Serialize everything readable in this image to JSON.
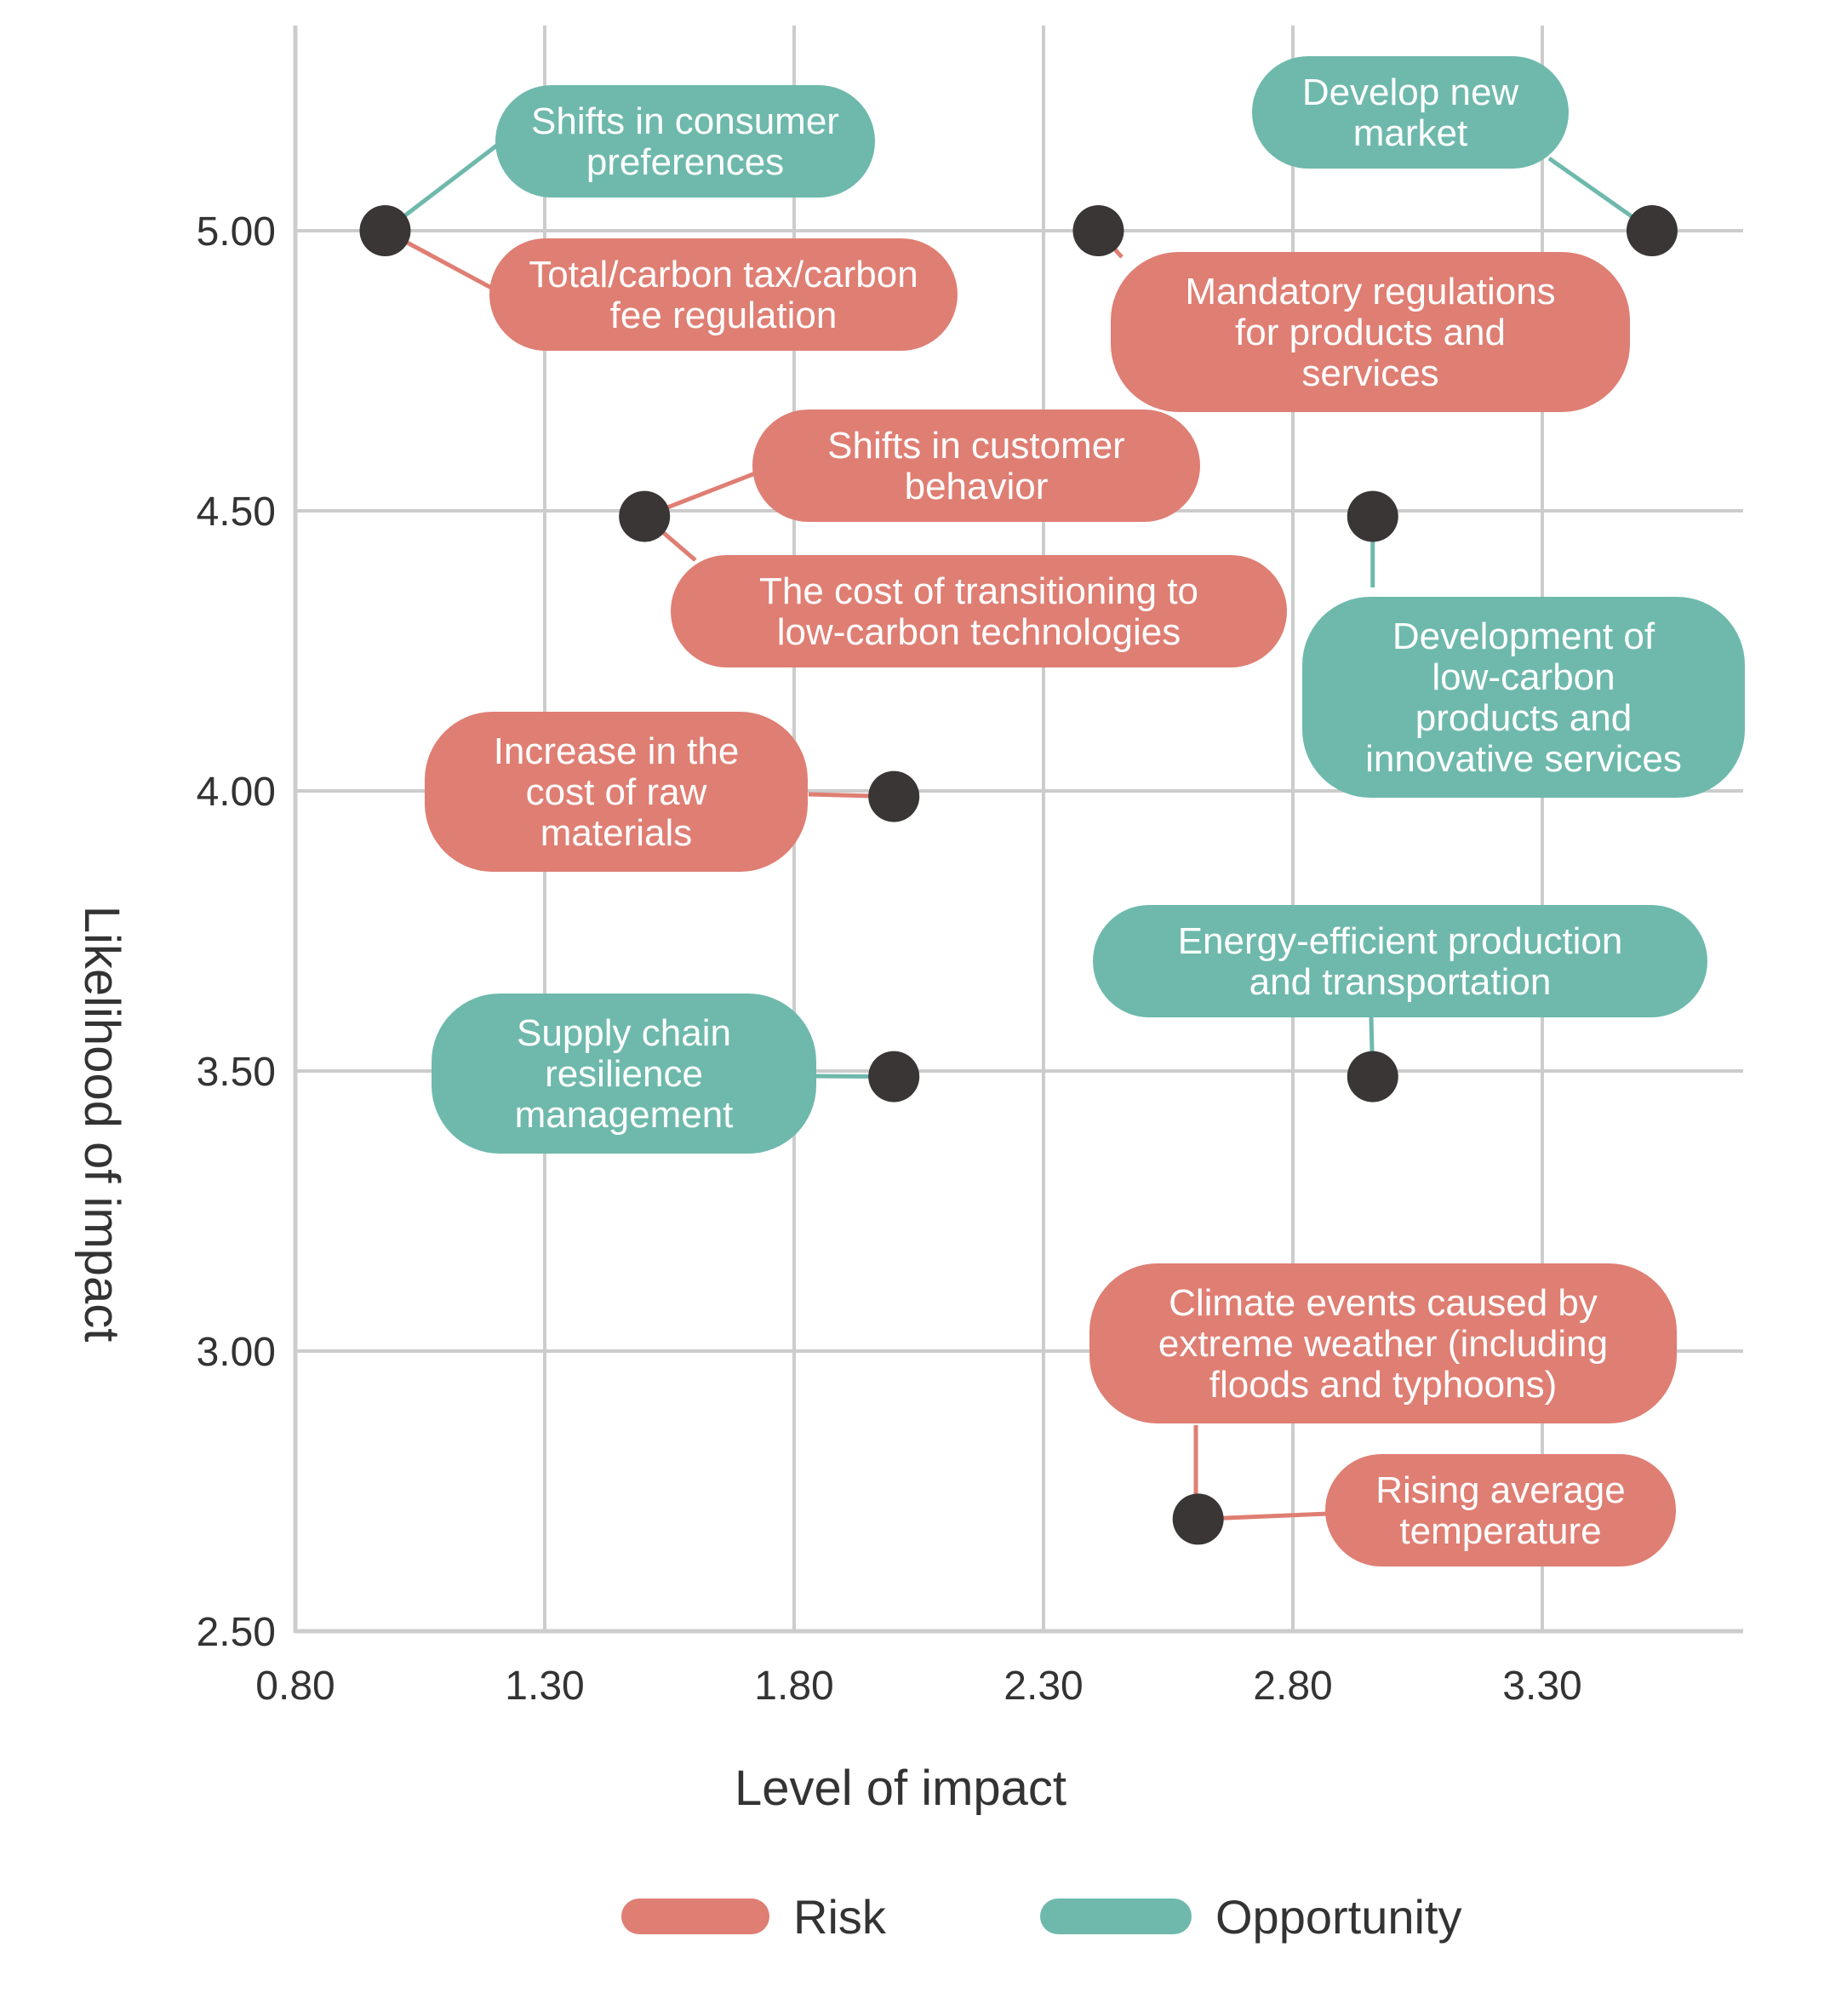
{
  "chart_data": {
    "type": "scatter",
    "title": "",
    "xlabel": "Level of impact",
    "ylabel": "Likelihood of impact",
    "xlim": [
      0.8,
      3.7
    ],
    "ylim": [
      2.5,
      5.35
    ],
    "x_ticks": [
      "0.80",
      "1.30",
      "1.80",
      "2.30",
      "2.80",
      "3.30"
    ],
    "x_tick_values": [
      0.8,
      1.3,
      1.8,
      2.3,
      2.8,
      3.3
    ],
    "y_ticks": [
      "5.00",
      "4.50",
      "4.00",
      "3.50",
      "3.00",
      "2.50"
    ],
    "y_tick_values": [
      5.0,
      4.5,
      4.0,
      3.5,
      3.0,
      2.5
    ],
    "grid": true,
    "legend_position": "bottom",
    "colors": {
      "risk": "#df7e73",
      "opportunity": "#6eb9ac",
      "point": "#3a3636",
      "grid": "#cccccc"
    },
    "legend": [
      {
        "label": "Risk",
        "kind": "risk"
      },
      {
        "label": "Opportunity",
        "kind": "opportunity"
      }
    ],
    "points": [
      {
        "x": 0.98,
        "y": 5.0
      },
      {
        "x": 2.41,
        "y": 5.0
      },
      {
        "x": 3.52,
        "y": 5.0
      },
      {
        "x": 1.5,
        "y": 4.49
      },
      {
        "x": 2.96,
        "y": 4.49
      },
      {
        "x": 2.0,
        "y": 3.99
      },
      {
        "x": 2.0,
        "y": 3.49
      },
      {
        "x": 2.96,
        "y": 3.49
      },
      {
        "x": 2.61,
        "y": 2.7
      }
    ],
    "annotations": [
      {
        "label": "Shifts in consumer preferences",
        "kind": "opportunity",
        "point": 0
      },
      {
        "label": "Total/carbon tax/carbon fee regulation",
        "kind": "risk",
        "point": 0
      },
      {
        "label": "Develop new market",
        "kind": "opportunity",
        "point": 2
      },
      {
        "label": "Mandatory regulations for products and services",
        "kind": "risk",
        "point": 1
      },
      {
        "label": "Shifts in customer behavior",
        "kind": "risk",
        "point": 3
      },
      {
        "label": "The cost of transitioning to low-carbon technologies",
        "kind": "risk",
        "point": 3
      },
      {
        "label": "Development of low-carbon products and innovative services",
        "kind": "opportunity",
        "point": 4
      },
      {
        "label": "Increase in the cost of raw materials",
        "kind": "risk",
        "point": 5
      },
      {
        "label": "Energy-efficient production and transportation",
        "kind": "opportunity",
        "point": 7
      },
      {
        "label": "Supply chain resilience management",
        "kind": "opportunity",
        "point": 6
      },
      {
        "label": "Climate events caused by extreme weather (including floods and typhoons)",
        "kind": "risk",
        "point": 8
      },
      {
        "label": "Rising average temperature",
        "kind": "risk",
        "point": 8
      }
    ]
  }
}
